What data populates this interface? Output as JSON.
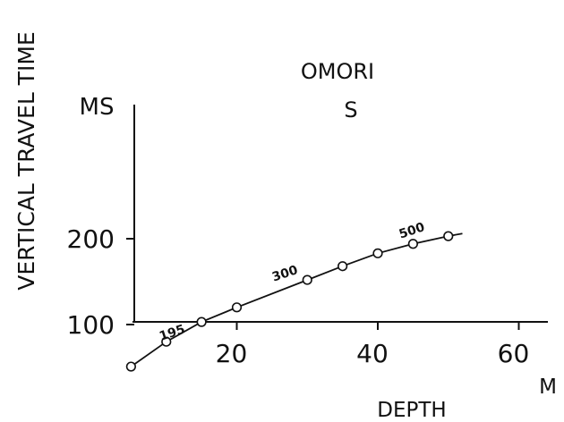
{
  "chart_data": {
    "type": "line",
    "title": "OMORI",
    "subtitle": "S",
    "xlabel": "DEPTH",
    "xunit": "M",
    "ylabel": "VERTICAL TRAVEL TIME",
    "yunit": "MS",
    "xlim": [
      0,
      60
    ],
    "ylim": [
      0,
      250
    ],
    "xticks": [
      20,
      40,
      60
    ],
    "yticks": [
      100,
      200
    ],
    "grid": false,
    "series": [
      {
        "x": [
          5,
          10,
          15,
          20,
          30,
          35,
          40,
          45,
          50,
          52
        ],
        "y": [
          51,
          80,
          103,
          120,
          152,
          168,
          183,
          194,
          203,
          206
        ],
        "markers_x": [
          5,
          10,
          15,
          20,
          30,
          35,
          40,
          45,
          50
        ],
        "markers_y": [
          51,
          80,
          103,
          120,
          152,
          168,
          183,
          194,
          203
        ]
      }
    ],
    "annotations": [
      {
        "text": "195",
        "x": 11,
        "y": 86
      },
      {
        "text": "300",
        "x": 27,
        "y": 155
      },
      {
        "text": "500",
        "x": 45,
        "y": 205
      }
    ]
  }
}
